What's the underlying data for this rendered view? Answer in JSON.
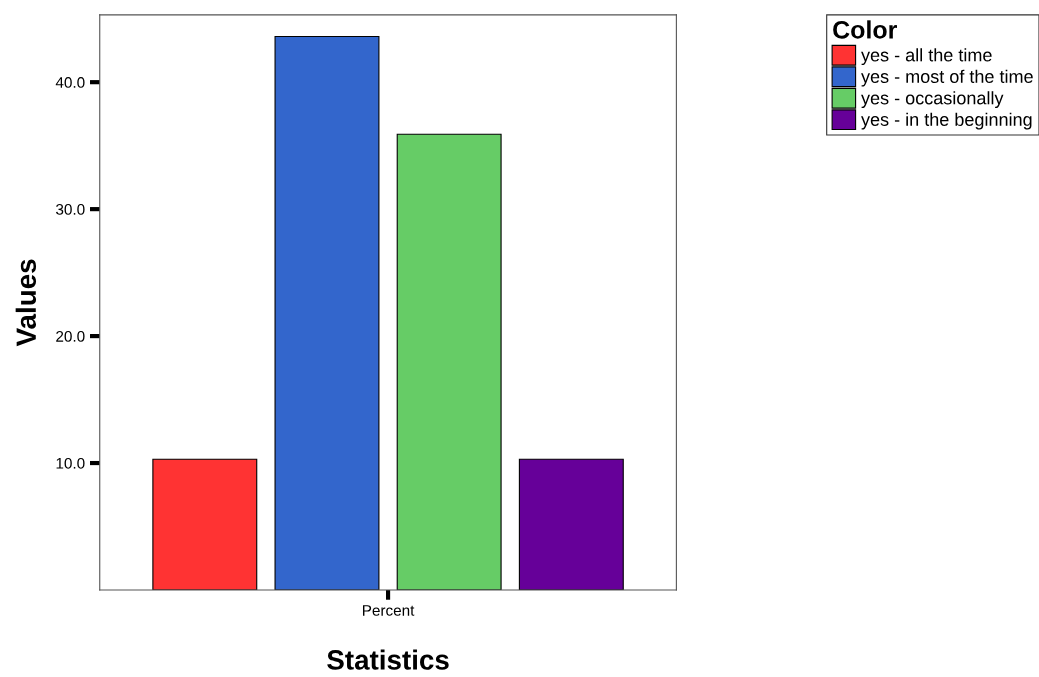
{
  "chart_data": {
    "type": "bar",
    "xlabel": "Statistics",
    "ylabel": "Values",
    "legend_title": "Color",
    "categories": [
      "Percent"
    ],
    "series": [
      {
        "name": "yes - all the time",
        "color": "#ff3333",
        "values": [
          10.3
        ]
      },
      {
        "name": "yes - most of the time",
        "color": "#3366cc",
        "values": [
          43.6
        ]
      },
      {
        "name": "yes - occasionally",
        "color": "#66cc66",
        "values": [
          35.9
        ]
      },
      {
        "name": "yes - in the beginning",
        "color": "#660099",
        "values": [
          10.3
        ]
      }
    ],
    "ylim": [
      0,
      45.3
    ],
    "yticks": [
      {
        "value": 10,
        "label": "10.0"
      },
      {
        "value": 20,
        "label": "20.0"
      },
      {
        "value": 30,
        "label": "30.0"
      },
      {
        "value": 40,
        "label": "40.0"
      }
    ],
    "grid": false,
    "legend": "top right"
  }
}
